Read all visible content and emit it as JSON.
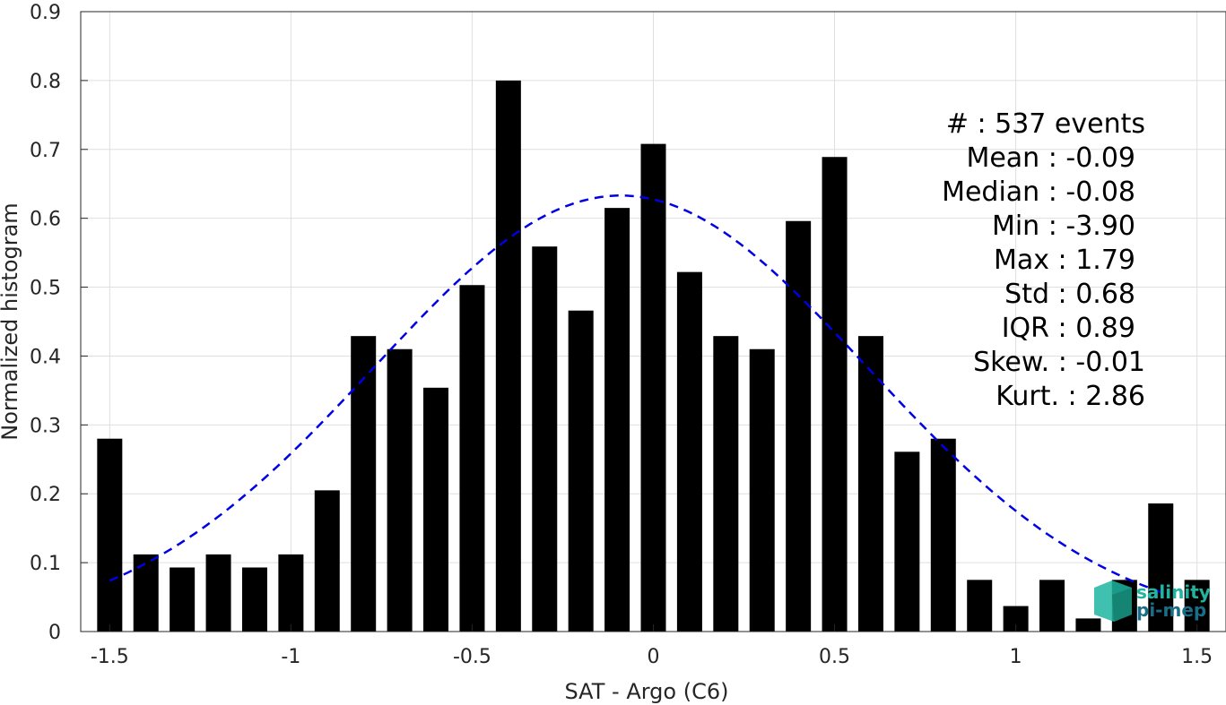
{
  "chart_data": {
    "type": "bar",
    "x": [
      -1.5,
      -1.4,
      -1.3,
      -1.2,
      -1.1,
      -1.0,
      -0.9,
      -0.8,
      -0.7,
      -0.6,
      -0.5,
      -0.4,
      -0.3,
      -0.2,
      -0.1,
      0.0,
      0.1,
      0.2,
      0.3,
      0.4,
      0.5,
      0.6,
      0.7,
      0.8,
      0.9,
      1.0,
      1.1,
      1.2,
      1.3,
      1.4,
      1.5
    ],
    "values": [
      0.28,
      0.112,
      0.093,
      0.112,
      0.093,
      0.112,
      0.205,
      0.429,
      0.41,
      0.354,
      0.503,
      0.8,
      0.559,
      0.466,
      0.615,
      0.708,
      0.522,
      0.429,
      0.41,
      0.596,
      0.689,
      0.429,
      0.261,
      0.28,
      0.075,
      0.037,
      0.075,
      0.019,
      0.075,
      0.186,
      0.075
    ],
    "fit": {
      "type": "gaussian",
      "mean": -0.09,
      "std": 0.68,
      "peak": 0.633,
      "x_range": [
        -1.5,
        1.4
      ],
      "style": "dashed",
      "color": "#0000e6"
    },
    "xlabel": "SAT - Argo (C6)",
    "ylabel": "Normalized histogram",
    "xlim": [
      -1.58,
      1.58
    ],
    "ylim": [
      0,
      0.9
    ],
    "xticks": [
      "-1.5",
      "-1",
      "-0.5",
      "0",
      "0.5",
      "1",
      "1.5"
    ],
    "xtick_values": [
      -1.5,
      -1,
      -0.5,
      0,
      0.5,
      1,
      1.5
    ],
    "yticks": [
      "0",
      "0.1",
      "0.2",
      "0.3",
      "0.4",
      "0.5",
      "0.6",
      "0.7",
      "0.8",
      "0.9"
    ],
    "ytick_values": [
      0,
      0.1,
      0.2,
      0.3,
      0.4,
      0.5,
      0.6,
      0.7,
      0.8,
      0.9
    ],
    "grid": true,
    "bar_color": "#000000"
  },
  "stats": [
    "#  : 537 events",
    "Mean : -0.09",
    "Median : -0.08",
    "Min : -3.90",
    "Max : 1.79",
    "Std : 0.68",
    "IQR : 0.89",
    "Skew. : -0.01",
    "Kurt. : 2.86"
  ],
  "logo": {
    "line1": "salinity",
    "line2": "pi-mep",
    "color1": "#1fb5a0",
    "color2": "#1a6e88"
  }
}
